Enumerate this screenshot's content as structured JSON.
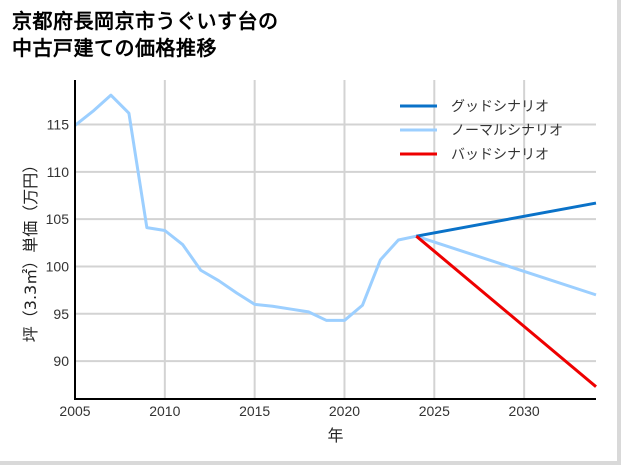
{
  "title_line1": "京都府長岡京市うぐいす台の",
  "title_line2": "中古戸建ての価格推移",
  "chart_data": {
    "type": "line",
    "title": "京都府長岡京市うぐいす台の中古戸建ての価格推移",
    "xlabel": "年",
    "ylabel": "坪（3.3㎡）単価（万円）",
    "xlim": [
      2005,
      2034
    ],
    "ylim": [
      86,
      119.7
    ],
    "xticks": [
      2005,
      2010,
      2015,
      2020,
      2025,
      2030
    ],
    "yticks": [
      90,
      95,
      100,
      105,
      110,
      115
    ],
    "grid": true,
    "legend_position": "upper right",
    "series": [
      {
        "name": "グッドシナリオ",
        "color": "#0a72c8",
        "x": [
          2024,
          2034
        ],
        "values": [
          103.2,
          106.7
        ]
      },
      {
        "name": "ノーマルシナリオ",
        "color": "#9ccfff",
        "x": [
          2005,
          2006,
          2007,
          2008,
          2009,
          2010,
          2011,
          2012,
          2013,
          2014,
          2015,
          2016,
          2017,
          2018,
          2019,
          2020,
          2021,
          2022,
          2023,
          2024,
          2034
        ],
        "values": [
          114.9,
          116.4,
          118.1,
          116.2,
          104.1,
          103.8,
          102.3,
          99.6,
          98.5,
          97.2,
          96.0,
          95.8,
          95.5,
          95.2,
          94.3,
          94.3,
          95.9,
          100.7,
          102.8,
          103.2,
          97.0
        ]
      },
      {
        "name": "バッドシナリオ",
        "color": "#ee0000",
        "x": [
          2024,
          2034
        ],
        "values": [
          103.2,
          87.3
        ]
      }
    ]
  }
}
